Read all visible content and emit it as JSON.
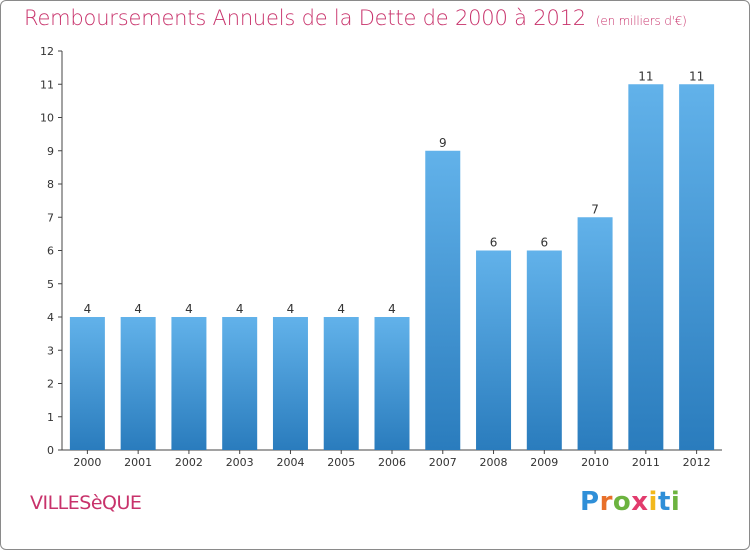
{
  "title": "Remboursements Annuels de la Dette de 2000 à 2012",
  "title_unit": "(en milliers d'€)",
  "commune": "VILLESèQUE",
  "brand": {
    "letters": [
      "P",
      "r",
      "o",
      "x",
      "i",
      "t",
      "i"
    ],
    "colors": [
      "#2f8fd8",
      "#e8702a",
      "#6cb33f",
      "#e23b6d",
      "#f2b81c",
      "#2f8fd8",
      "#6cb33f"
    ]
  },
  "colors": {
    "title": "#c8326b",
    "bar_light": "#62b2ea",
    "bar_dark": "#2a7cbd"
  },
  "chart_data": {
    "type": "bar",
    "title": "Remboursements Annuels de la Dette de 2000 à 2012",
    "xlabel": "",
    "ylabel": "en milliers d'€",
    "categories": [
      "2000",
      "2001",
      "2002",
      "2003",
      "2004",
      "2005",
      "2006",
      "2007",
      "2008",
      "2009",
      "2010",
      "2011",
      "2012"
    ],
    "values": [
      4,
      4,
      4,
      4,
      4,
      4,
      4,
      9,
      6,
      6,
      7,
      11,
      11
    ],
    "ylim": [
      0,
      12
    ],
    "yticks": [
      0,
      1,
      2,
      3,
      4,
      5,
      6,
      7,
      8,
      9,
      10,
      11,
      12
    ],
    "grid": false,
    "legend": "none"
  }
}
